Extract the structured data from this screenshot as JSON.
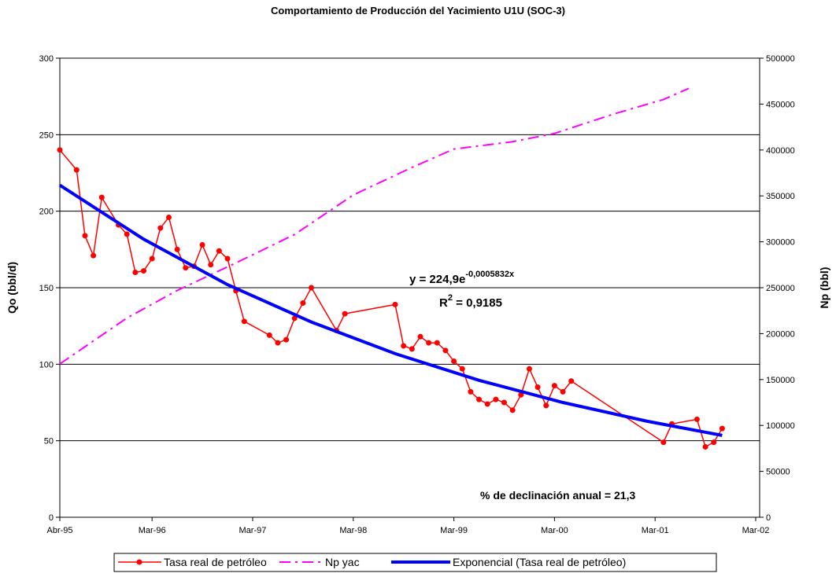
{
  "chart_data": {
    "type": "line",
    "title": "Comportamiento de Producción del Yacimiento U1U (SOC-3)",
    "y_label": "Qo (bbl/d)",
    "y2_label": "Np (bbl)",
    "xlim": [
      "1995-04",
      "2002-03"
    ],
    "xticks": [
      {
        "value": "1995-04",
        "label": "Abr-95"
      },
      {
        "value": "1996-03",
        "label": "Mar-96"
      },
      {
        "value": "1997-03",
        "label": "Mar-97"
      },
      {
        "value": "1998-03",
        "label": "Mar-98"
      },
      {
        "value": "1999-03",
        "label": "Mar-99"
      },
      {
        "value": "2000-03",
        "label": "Mar-00"
      },
      {
        "value": "2001-03",
        "label": "Mar-01"
      },
      {
        "value": "2002-03",
        "label": "Mar-02"
      }
    ],
    "ylim": [
      0,
      300
    ],
    "yticks": [
      0,
      50,
      100,
      150,
      200,
      250,
      300
    ],
    "y2lim": [
      0,
      500000
    ],
    "y2ticks": [
      0,
      50000,
      100000,
      150000,
      200000,
      250000,
      300000,
      350000,
      400000,
      450000,
      500000
    ],
    "grid": true,
    "series": [
      {
        "name": "Tasa real de petróleo",
        "color": "#ff0000",
        "style": "marker",
        "x": [
          "1995-04",
          "1995-06",
          "1995-07",
          "1995-08",
          "1995-09",
          "1995-11",
          "1995-12",
          "1996-01",
          "1996-02",
          "1996-03",
          "1996-04",
          "1996-05",
          "1996-06",
          "1996-07",
          "1996-08",
          "1996-09",
          "1996-10",
          "1996-11",
          "1996-12",
          "1997-01",
          "1997-02",
          "1997-05",
          "1997-06",
          "1997-07",
          "1997-08",
          "1997-09",
          "1997-10",
          "1998-01",
          "1998-02",
          "1998-08",
          "1998-09",
          "1998-10",
          "1998-11",
          "1998-12",
          "1999-01",
          "1999-02",
          "1999-03",
          "1999-04",
          "1999-05",
          "1999-06",
          "1999-07",
          "1999-08",
          "1999-09",
          "1999-10",
          "1999-11",
          "1999-12",
          "2000-01",
          "2000-02",
          "2000-03",
          "2000-04",
          "2000-05",
          "2001-04",
          "2001-05",
          "2001-08",
          "2001-09",
          "2001-10",
          "2001-11"
        ],
        "values": [
          240,
          227,
          184,
          171,
          209,
          191,
          185,
          160,
          161,
          169,
          189,
          196,
          175,
          163,
          164,
          178,
          165,
          174,
          169,
          148,
          128,
          119,
          114,
          116,
          130,
          140,
          150,
          122,
          133,
          139,
          112,
          110,
          118,
          114,
          114,
          109,
          102,
          97,
          82,
          77,
          74,
          77,
          75,
          70,
          80,
          97,
          85,
          73,
          86,
          82,
          89,
          49,
          61,
          64,
          46,
          49,
          58
        ]
      },
      {
        "name": "Np yac",
        "color": "#ff00ff",
        "style": "dash",
        "axis": "y2",
        "x": [
          "1995-04",
          "1995-12",
          "1996-06",
          "1997-01",
          "1997-08",
          "1998-03",
          "1998-10",
          "1999-03",
          "1999-10",
          "2000-03",
          "2000-10",
          "2001-04",
          "2001-07"
        ],
        "values": [
          167000,
          217000,
          247000,
          277000,
          308000,
          351000,
          381000,
          401000,
          409000,
          418000,
          439000,
          455000,
          467000
        ]
      },
      {
        "name": "Exponencial (Tasa real de petróleo)",
        "color": "#0000ff",
        "style": "thick",
        "x": [
          "1995-04",
          "1996-02",
          "1996-12",
          "1997-10",
          "1998-08",
          "1999-06",
          "2000-04",
          "2001-02",
          "2001-11"
        ],
        "values": [
          217,
          181.7,
          152,
          127.6,
          106.9,
          89.5,
          75,
          62.8,
          53.5
        ]
      }
    ],
    "annotations": {
      "eq_base": "y = 224,9e",
      "eq_exp": "-0,0005832x",
      "r_base": "R",
      "r_exp": "2",
      "r_rest": " = 0,9185",
      "decline": "% de declinación anual = 21,3"
    },
    "legend": "bottom"
  }
}
